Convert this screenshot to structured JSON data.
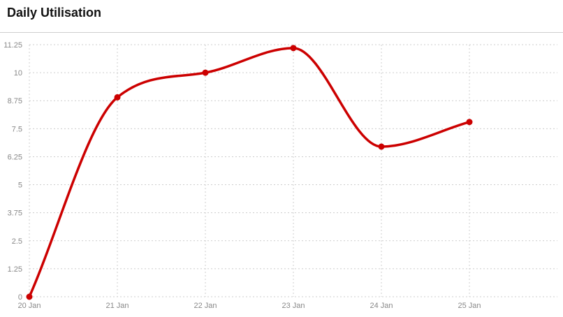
{
  "header": {
    "title": "Daily Utilisation"
  },
  "chart_data": {
    "type": "line",
    "title": "Daily Utilisation",
    "xlabel": "",
    "ylabel": "",
    "categories": [
      "20 Jan",
      "21 Jan",
      "22 Jan",
      "23 Jan",
      "24 Jan",
      "25 Jan"
    ],
    "series": [
      {
        "values": [
          0,
          8.9,
          10,
          11.1,
          6.7,
          7.8
        ],
        "color": "#cc0000"
      }
    ],
    "y_ticks": [
      "0",
      "1.25",
      "2.5",
      "3.75",
      "5",
      "6.25",
      "7.5",
      "8.75",
      "10",
      "11.25"
    ],
    "ylim": [
      0,
      11.25
    ],
    "grid": true,
    "legend": "none",
    "colors": {
      "line": "#cc0000",
      "grid": "#cccccc",
      "axis_text": "#888888"
    }
  }
}
